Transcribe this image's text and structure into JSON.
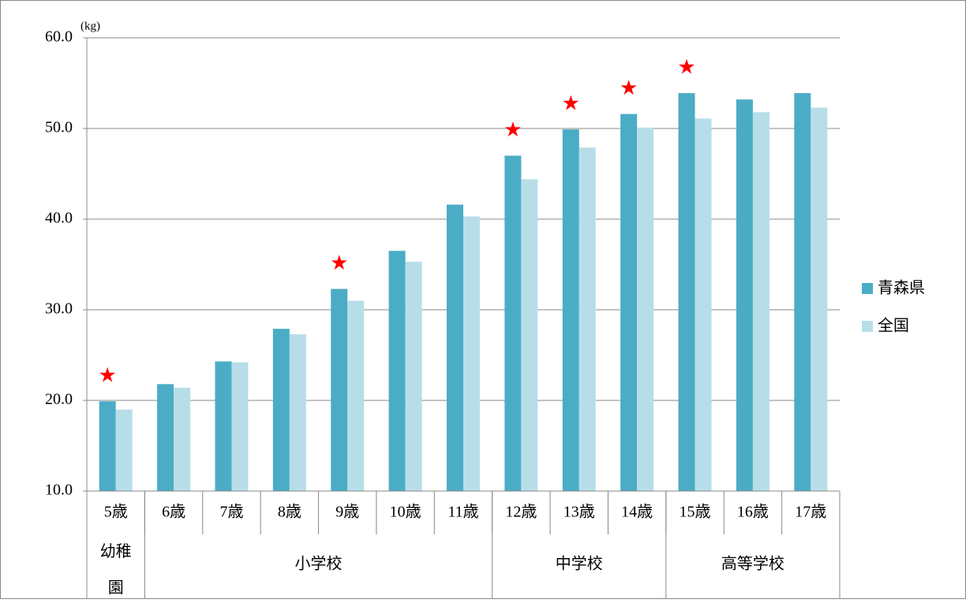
{
  "chart_data": {
    "type": "bar",
    "y_unit": "(kg)",
    "categories": [
      "5歳",
      "6歳",
      "7歳",
      "8歳",
      "9歳",
      "10歳",
      "11歳",
      "12歳",
      "13歳",
      "14歳",
      "15歳",
      "16歳",
      "17歳"
    ],
    "series": [
      {
        "name": "青森県",
        "color": "#4bacc6",
        "values": [
          19.9,
          21.8,
          24.3,
          27.9,
          32.3,
          36.5,
          41.6,
          47.0,
          49.9,
          51.6,
          53.9,
          53.2,
          53.9
        ]
      },
      {
        "name": "全国",
        "color": "#b7dee8",
        "values": [
          19.0,
          21.4,
          24.2,
          27.3,
          31.0,
          35.3,
          40.3,
          44.4,
          47.9,
          50.1,
          51.1,
          51.8,
          52.3
        ]
      }
    ],
    "stars": [
      "★",
      null,
      null,
      null,
      "★",
      null,
      null,
      "★",
      "★",
      "★",
      "★",
      null,
      null
    ],
    "star_color": "#ff0000",
    "groups": [
      {
        "label": "幼稚園",
        "span": 1
      },
      {
        "label": "小学校",
        "span": 6
      },
      {
        "label": "中学校",
        "span": 3
      },
      {
        "label": "高等学校",
        "span": 3
      }
    ],
    "ylim": [
      10,
      60
    ],
    "yticks": [
      {
        "value": 10,
        "label": "10.0"
      },
      {
        "value": 20,
        "label": "20.0"
      },
      {
        "value": 30,
        "label": "30.0"
      },
      {
        "value": 40,
        "label": "40.0"
      },
      {
        "value": 50,
        "label": "50.0"
      },
      {
        "value": 60,
        "label": "60.0"
      }
    ],
    "grid": true,
    "legend": "right"
  }
}
